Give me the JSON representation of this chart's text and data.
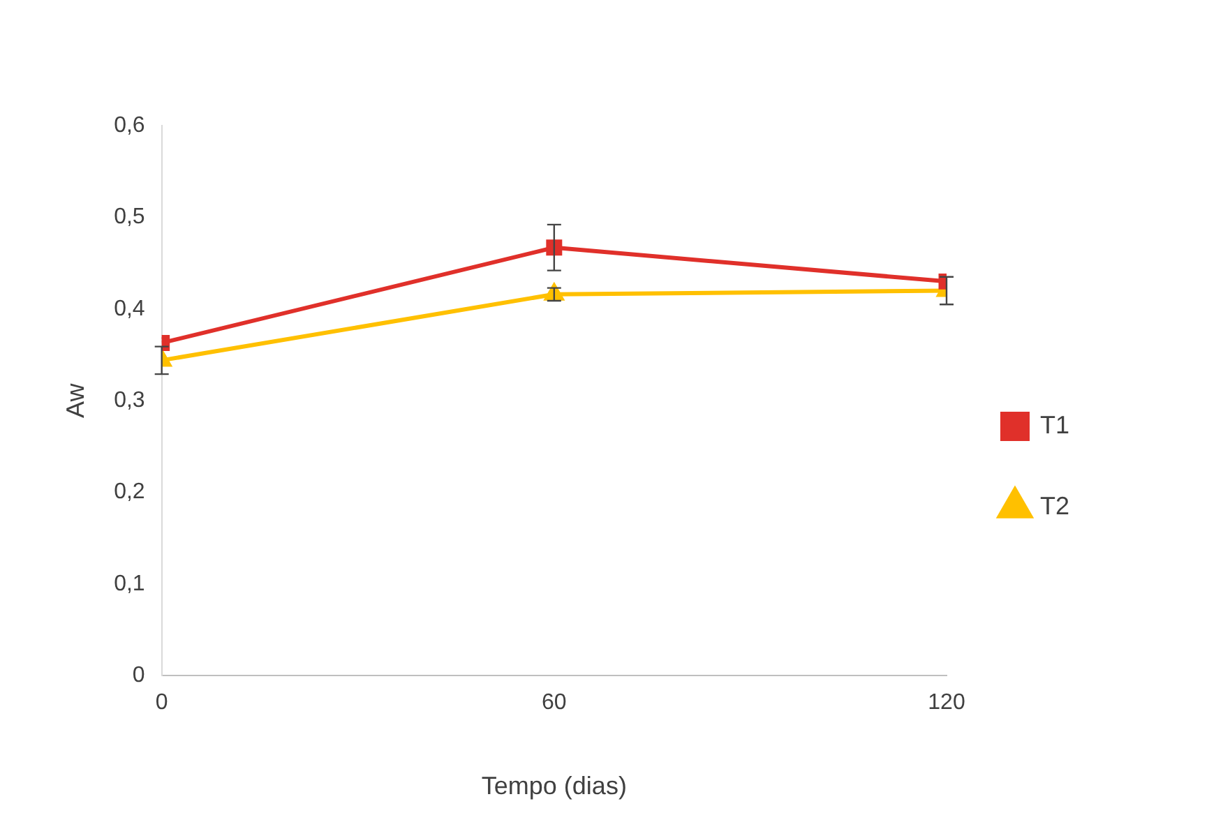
{
  "chart_data": {
    "type": "line",
    "xlabel": "Tempo (dias)",
    "ylabel": "Aw",
    "x": [
      0,
      60,
      120
    ],
    "xlim": [
      0,
      120
    ],
    "xticks": [
      0,
      60,
      120
    ],
    "ylim": [
      0,
      0.6
    ],
    "yticks": [
      0,
      {
        "value": 0.1,
        "label": "0,1"
      },
      {
        "value": 0.2,
        "label": "0,2"
      },
      {
        "value": 0.3,
        "label": "0,3"
      },
      {
        "value": 0.4,
        "label": "0,4"
      },
      {
        "value": 0.5,
        "label": "0,5"
      },
      {
        "value": 0.6,
        "label": "0,6"
      }
    ],
    "grid": false,
    "legend": "right",
    "line_style": "solid",
    "series": [
      {
        "name": "T1",
        "color": "#e0302a",
        "marker": "square",
        "values": [
          0.363,
          0.467,
          0.43
        ],
        "errors": [
          null,
          0.025,
          null
        ]
      },
      {
        "name": "T2",
        "color": "#ffc000",
        "marker": "triangle",
        "values": [
          0.344,
          0.416,
          0.42
        ],
        "errors": [
          0.015,
          0.007,
          0.015
        ]
      }
    ]
  }
}
